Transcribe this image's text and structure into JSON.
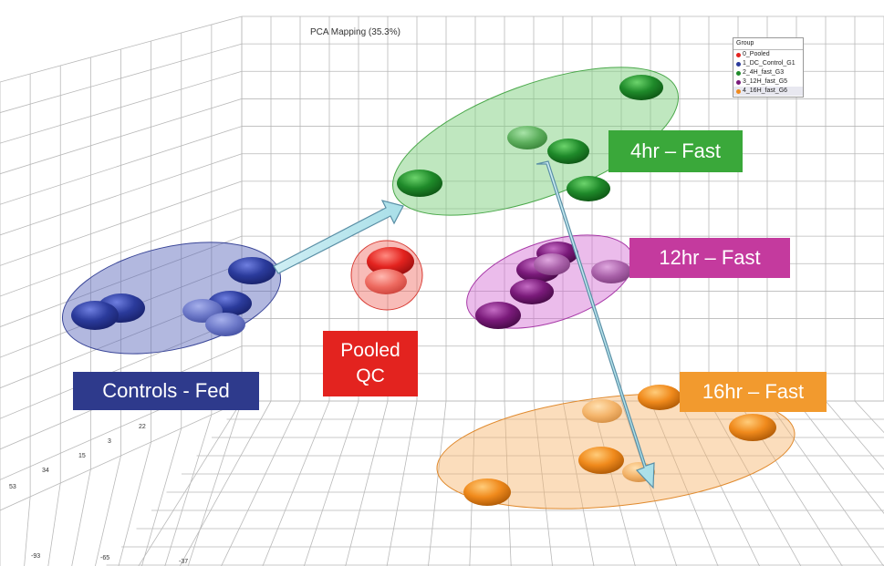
{
  "title": "PCA Mapping (35.3%)",
  "legend": {
    "title": "Group",
    "entries": [
      {
        "label": "0_Pooled",
        "color": "#e3231f"
      },
      {
        "label": "1_DC_Control_G1",
        "color": "#2b3b9c"
      },
      {
        "label": "2_4H_fast_G3",
        "color": "#1f8a2a"
      },
      {
        "label": "3_12H_fast_G5",
        "color": "#7a1a7a"
      },
      {
        "label": "4_16H_fast_G6",
        "color": "#f08a1c"
      }
    ],
    "selected_index": 4
  },
  "group_labels": {
    "controls": {
      "text": "Controls - Fed",
      "color": "#2e3a8c"
    },
    "qc_line1": "Pooled",
    "qc_line2": "QC",
    "qc_color": "#e3231f",
    "fast4": {
      "text": "4hr – Fast",
      "color": "#3aa83a"
    },
    "fast12": {
      "text": "12hr – Fast",
      "color": "#c43a9e"
    },
    "fast16": {
      "text": "16hr – Fast",
      "color": "#f29a2e"
    }
  },
  "chart_data": {
    "type": "scatter",
    "title": "PCA Mapping (35.3%)",
    "dimensions": 3,
    "series": [
      {
        "name": "0_Pooled",
        "color": "#e3231f",
        "count": 2
      },
      {
        "name": "1_DC_Control_G1",
        "color": "#2b3b9c",
        "count": 6
      },
      {
        "name": "2_4H_fast_G3",
        "color": "#1f8a2a",
        "count": 5
      },
      {
        "name": "3_12H_fast_G5",
        "color": "#7a1a7a",
        "count": 6
      },
      {
        "name": "4_16H_fast_G6",
        "color": "#f08a1c",
        "count": 6
      }
    ],
    "axis_tick_labels": {
      "left_axis": [
        "22",
        "3",
        "15",
        "34",
        "53"
      ],
      "bottom_axis": [
        "-93",
        "-65",
        "-37"
      ]
    },
    "annotations": [
      "Controls - Fed",
      "Pooled QC",
      "4hr – Fast",
      "12hr – Fast",
      "16hr – Fast"
    ],
    "grid": true,
    "legend_position": "top-right"
  }
}
